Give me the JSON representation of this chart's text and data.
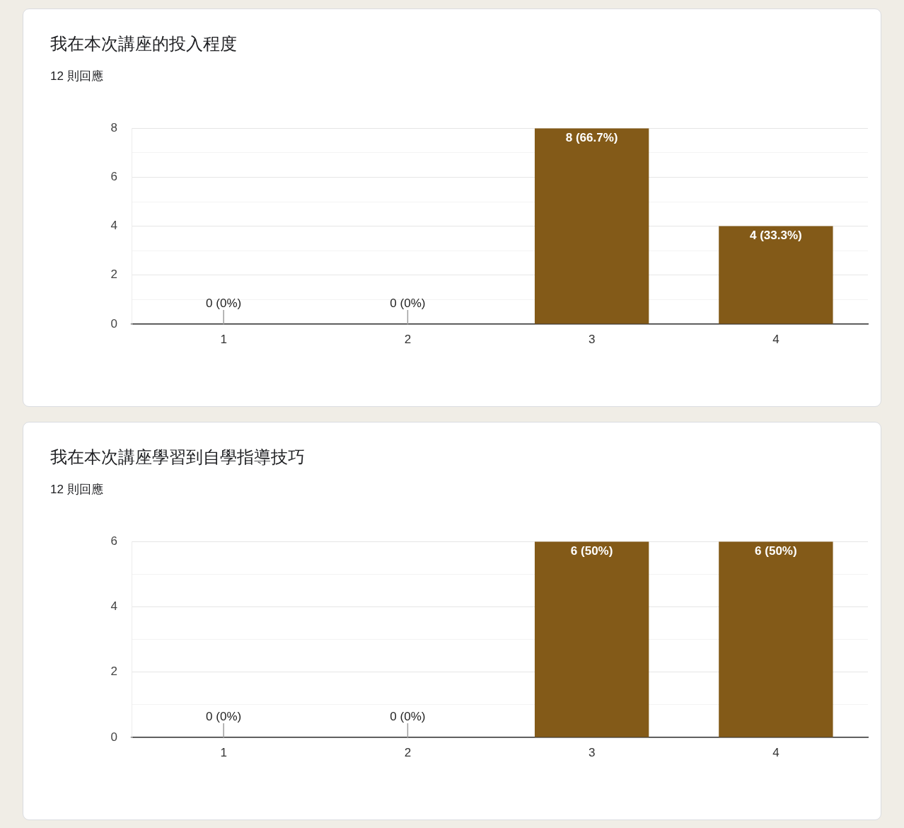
{
  "chart_data": [
    {
      "type": "bar",
      "title": "我在本次講座的投入程度",
      "subtitle": "12 則回應",
      "categories": [
        "1",
        "2",
        "3",
        "4"
      ],
      "values": [
        0,
        0,
        8,
        4
      ],
      "color": "#835a18",
      "value_labels": [
        "0 (0%)",
        "0 (0%)",
        "8 (66.7%)",
        "4 (33.3%)"
      ],
      "ylim": [
        0,
        8
      ],
      "yticks": [
        0,
        {
          "value": 1,
          "label": null
        },
        2,
        {
          "value": 3,
          "label": null
        },
        4,
        {
          "value": 5,
          "label": null
        },
        6,
        {
          "value": 7,
          "label": null
        },
        8
      ],
      "grid": "y"
    },
    {
      "type": "bar",
      "title": "我在本次講座學習到自學指導技巧",
      "subtitle": "12 則回應",
      "categories": [
        "1",
        "2",
        "3",
        "4"
      ],
      "values": [
        0,
        0,
        6,
        6
      ],
      "color": "#835a18",
      "value_labels": [
        "0 (0%)",
        "0 (0%)",
        "6 (50%)",
        "6 (50%)"
      ],
      "ylim": [
        0,
        6
      ],
      "yticks": [
        0,
        {
          "value": 1,
          "label": null
        },
        2,
        {
          "value": 3,
          "label": null
        },
        4,
        {
          "value": 5,
          "label": null
        },
        6
      ],
      "grid": "y"
    }
  ]
}
